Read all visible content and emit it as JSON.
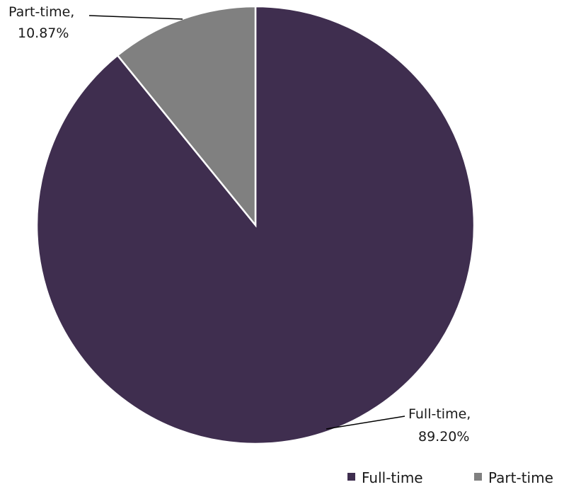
{
  "chart_data": {
    "type": "pie",
    "slices": [
      {
        "name": "Full-time",
        "value": 89.2,
        "label_line1": "Full-time,",
        "label_line2": "89.20%",
        "color": "#3f2e4f"
      },
      {
        "name": "Part-time",
        "value": 10.87,
        "label_line1": "Part-time,",
        "label_line2": "10.87%",
        "color": "#808080"
      }
    ],
    "legend": {
      "position": "bottom-right",
      "entries": [
        "Full-time",
        "Part-time"
      ]
    }
  }
}
